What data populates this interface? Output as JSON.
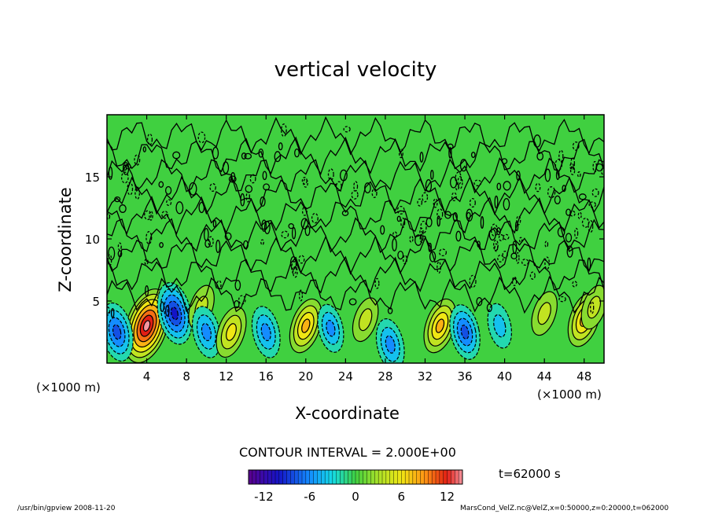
{
  "title": "vertical velocity",
  "x_unit_left": "(×1000 m)",
  "x_unit_right": "(×1000 m)",
  "contour_interval": "CONTOUR INTERVAL = 2.000E+00",
  "time_label": "t=62000 s",
  "footer_left": "/usr/bin/gpview   2008-11-20",
  "footer_right": "MarsCond_VelZ.nc@VelZ,x=0:50000,z=0:20000,t=062000",
  "colors": {
    "background_field": "#40d040",
    "contour_line": "#000000",
    "updraft_core": "#e02010",
    "downdraft_core": "#10a0ff"
  },
  "colorbar": {
    "min": -14,
    "max": 14,
    "tick_labels": [
      "-12",
      "-6",
      "0",
      "6",
      "12"
    ],
    "tick_values": [
      -12,
      -6,
      0,
      6,
      12
    ]
  },
  "chart_data": {
    "type": "heatmap",
    "title": "vertical velocity",
    "xlabel": "X-coordinate",
    "ylabel": "Z-coordinate",
    "xlim": [
      0,
      50
    ],
    "ylim": [
      0,
      20
    ],
    "x_ticks": [
      4,
      8,
      12,
      16,
      20,
      24,
      28,
      32,
      36,
      40,
      44,
      48
    ],
    "y_ticks": [
      5,
      10,
      15
    ],
    "x_tick_labels": [
      "4",
      "8",
      "12",
      "16",
      "20",
      "24",
      "28",
      "32",
      "36",
      "40",
      "44",
      "48"
    ],
    "y_tick_labels": [
      "5",
      "10",
      "15"
    ],
    "contour_interval": 2.0,
    "features": [
      {
        "kind": "updraft",
        "x": 4.0,
        "z": 3.0,
        "peak": 13
      },
      {
        "kind": "downdraft",
        "x": 1.0,
        "z": 2.5,
        "peak": -8
      },
      {
        "kind": "downdraft",
        "x": 6.8,
        "z": 4.0,
        "peak": -9
      },
      {
        "kind": "updraft",
        "x": 9.5,
        "z": 4.5,
        "peak": 4
      },
      {
        "kind": "downdraft",
        "x": 10.0,
        "z": 2.5,
        "peak": -6
      },
      {
        "kind": "updraft",
        "x": 12.5,
        "z": 2.5,
        "peak": 6
      },
      {
        "kind": "downdraft",
        "x": 16.0,
        "z": 2.5,
        "peak": -6
      },
      {
        "kind": "updraft",
        "x": 20.0,
        "z": 3.0,
        "peak": 7
      },
      {
        "kind": "downdraft",
        "x": 22.5,
        "z": 2.8,
        "peak": -5
      },
      {
        "kind": "updraft",
        "x": 26.0,
        "z": 3.5,
        "peak": 4
      },
      {
        "kind": "downdraft",
        "x": 28.5,
        "z": 1.5,
        "peak": -6
      },
      {
        "kind": "updraft",
        "x": 33.5,
        "z": 3.0,
        "peak": 7
      },
      {
        "kind": "downdraft",
        "x": 36.0,
        "z": 2.5,
        "peak": -7
      },
      {
        "kind": "downdraft",
        "x": 39.5,
        "z": 3.0,
        "peak": -4
      },
      {
        "kind": "updraft",
        "x": 44.0,
        "z": 4.0,
        "peak": 4
      },
      {
        "kind": "updraft",
        "x": 48.0,
        "z": 3.5,
        "peak": 7
      },
      {
        "kind": "updraft",
        "x": 49.0,
        "z": 4.5,
        "peak": 4
      }
    ]
  }
}
